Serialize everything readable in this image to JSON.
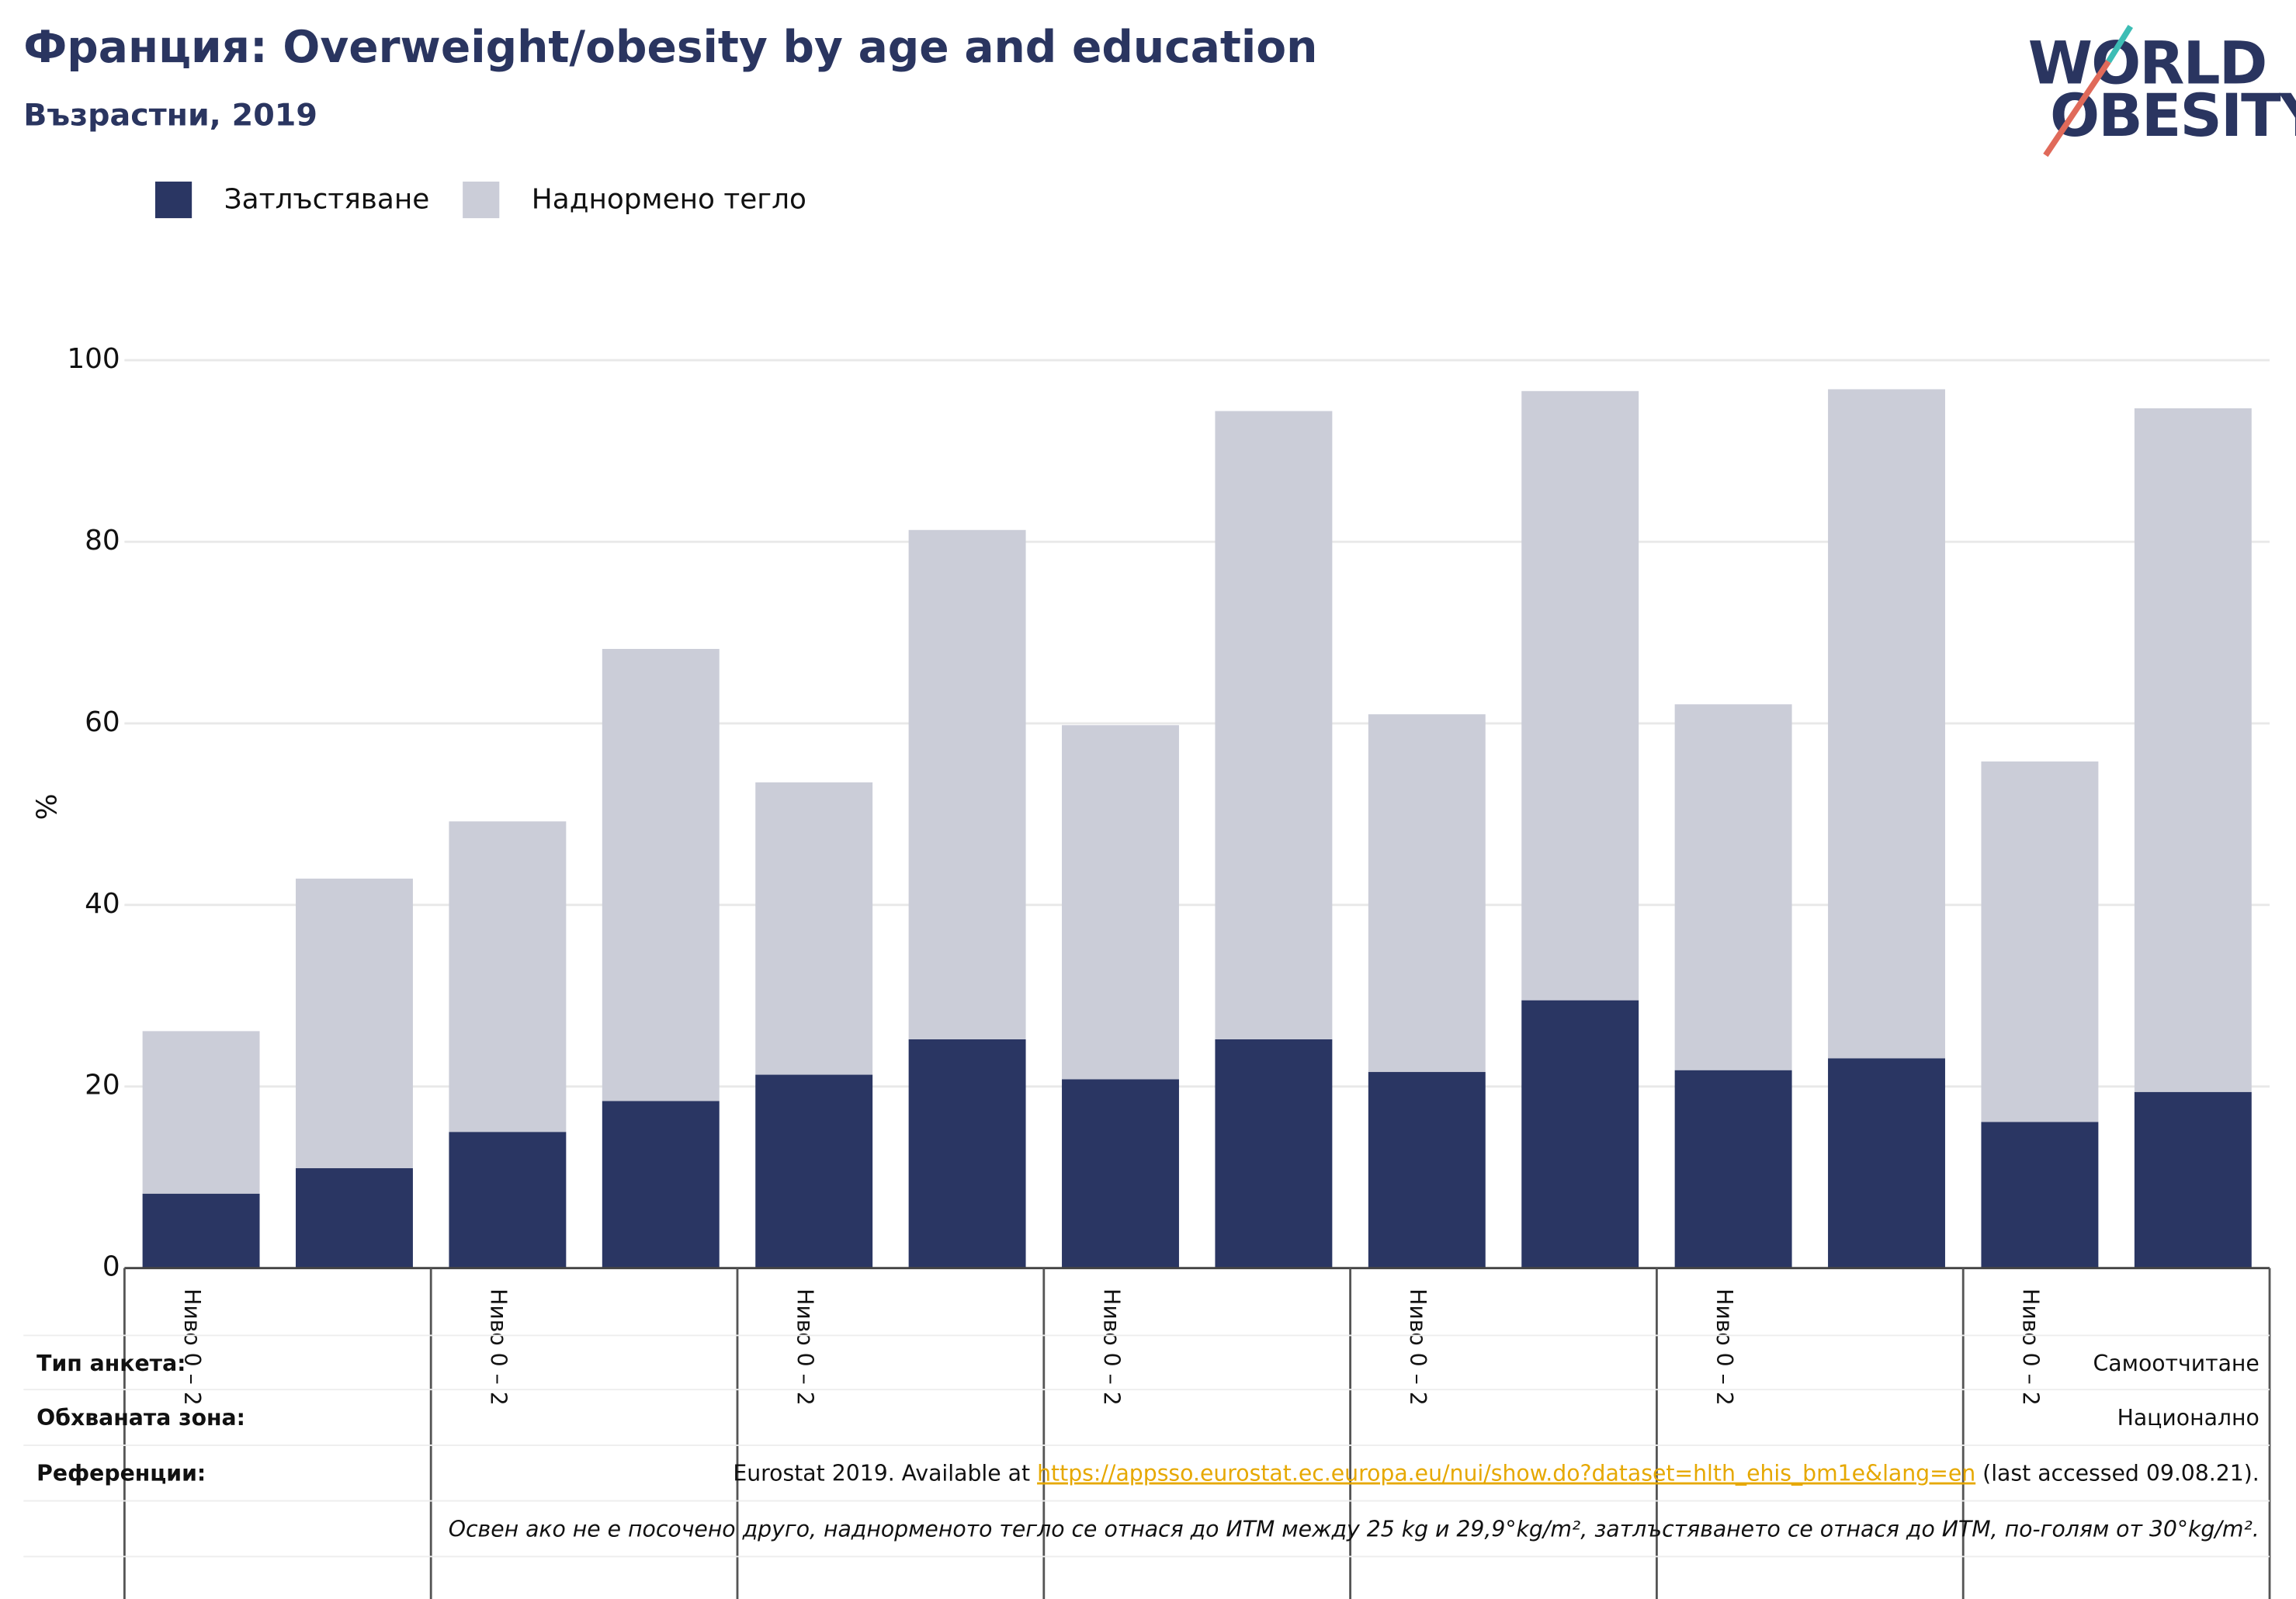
{
  "chart_data": {
    "type": "stacked_bar",
    "title": "Франция: Overweight/obesity by age and education",
    "subtitle": "Възрастни, 2019",
    "y_label": "%",
    "categories": [
      "Ниво 0 – 2",
      null,
      "Ниво 0 – 2",
      null,
      "Ниво 0 – 2",
      null,
      "Ниво 0 – 2",
      null,
      "Ниво 0 – 2",
      null,
      "Ниво 0 – 2",
      null,
      "Ниво 0 – 2",
      null
    ],
    "series": [
      {
        "name": "Затлъстяване",
        "color": "#2a3663",
        "values": [
          8.2,
          11.0,
          15.0,
          18.4,
          21.3,
          25.2,
          20.8,
          25.2,
          21.6,
          29.5,
          21.8,
          23.1,
          16.1,
          19.4
        ]
      },
      {
        "name": "Наднормено тегло",
        "color": "#cbcdd8",
        "values": [
          17.9,
          31.9,
          34.2,
          49.8,
          32.2,
          56.1,
          39.0,
          69.2,
          39.4,
          67.1,
          40.3,
          73.7,
          39.7,
          75.3
        ]
      }
    ],
    "ylim": [
      0,
      100
    ],
    "yticks": [
      0,
      20,
      40,
      60,
      80,
      100
    ],
    "grid": true,
    "legend": "top-left"
  },
  "logo": [
    "WORLD",
    "OBESITY"
  ],
  "table": [
    {
      "label": "Тип анкета:",
      "value": "Самоотчитане"
    },
    {
      "label": "Обхваната зона:",
      "value": "Национално"
    },
    {
      "label": "Референции:",
      "value": [
        "Eurostat 2019. Available at ",
        "https://appsso.eurostat.ec.europa.eu/nui/show.do?dataset=hlth_ehis_bm1e&lang=en",
        " (last accessed 09.08.21)."
      ]
    },
    "Освен ако не е посочено друго, наднорменото тегло се отнася до ИТМ между 25 kg и 29,9°kg/m², затлъстяването се отнася до ИТМ, по-голям от 30°kg/m²."
  ]
}
